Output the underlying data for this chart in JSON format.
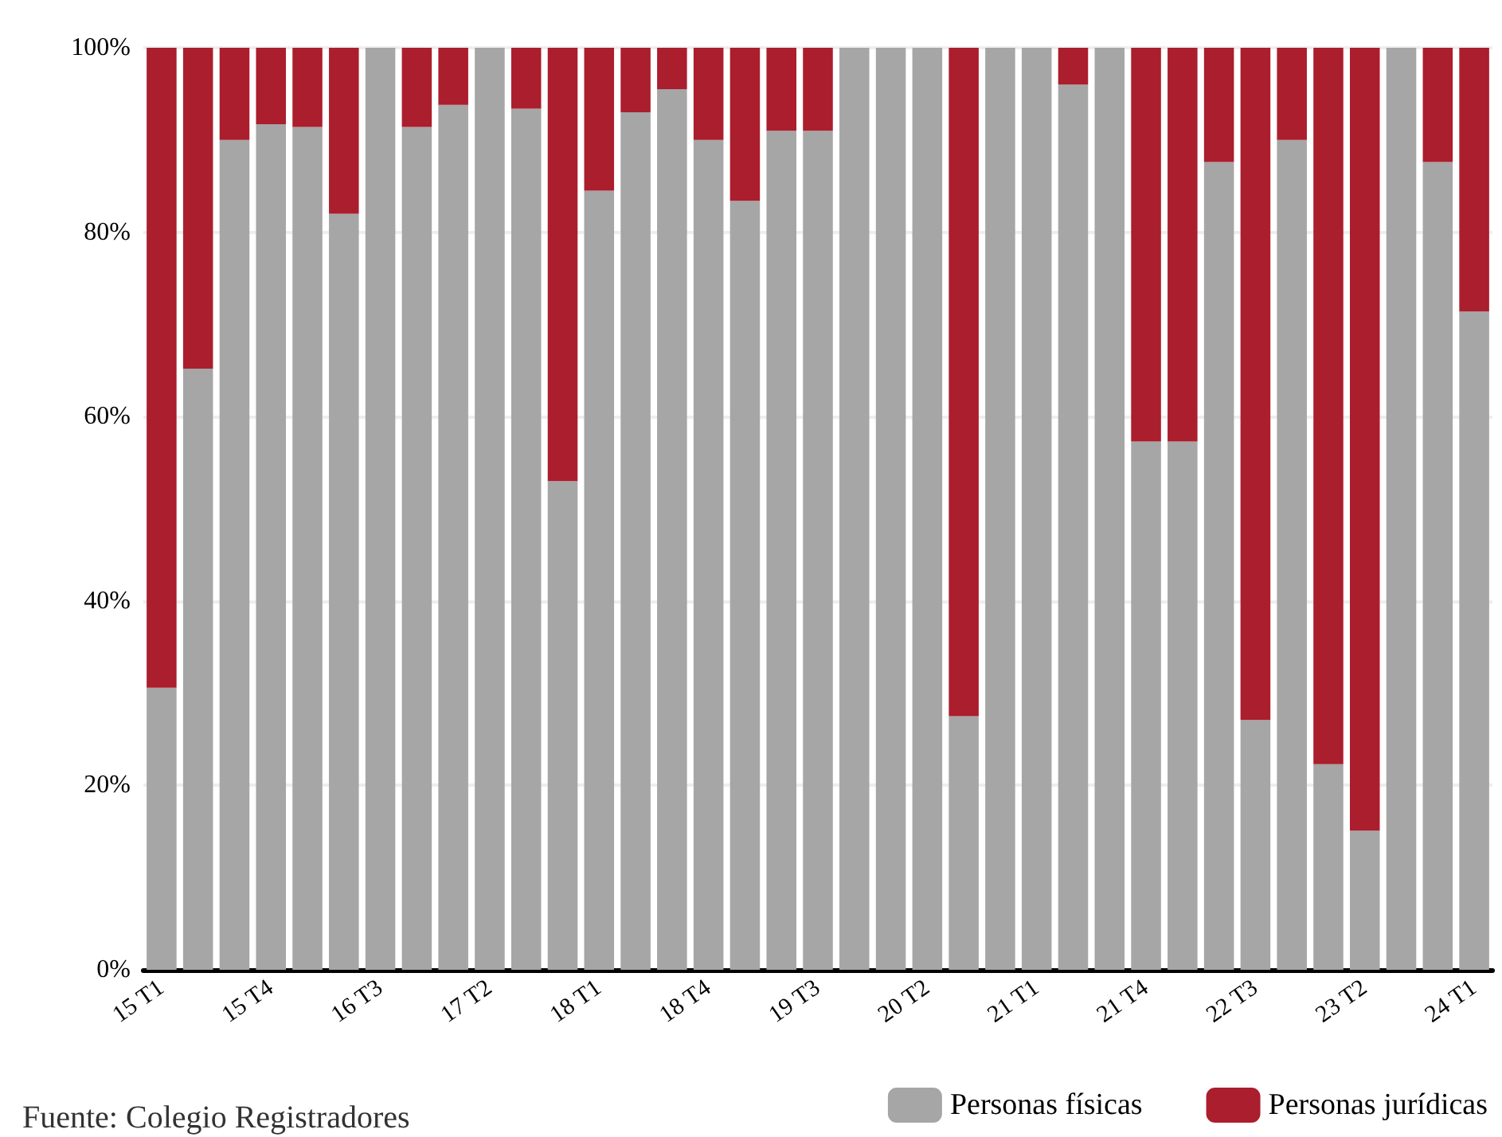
{
  "chart_data": {
    "type": "bar",
    "stacked": true,
    "categories": [
      "15 T1",
      null,
      null,
      "15 T4",
      null,
      null,
      "16 T3",
      null,
      null,
      "17 T2",
      null,
      null,
      "18 T1",
      null,
      null,
      "18 T4",
      null,
      null,
      "19 T3",
      null,
      null,
      "20 T2",
      null,
      null,
      "21 T1",
      null,
      null,
      "21 T4",
      null,
      null,
      "22 T3",
      null,
      null,
      "23 T2",
      null,
      null,
      "24 T1"
    ],
    "series": [
      {
        "name": "Personas físicas",
        "color": "#a6a6a6",
        "values": [
          30.6,
          65.2,
          90,
          91.7,
          91.4,
          82,
          100,
          91.4,
          93.8,
          100,
          93.4,
          53,
          84.5,
          93,
          95.5,
          90,
          83.4,
          91,
          91,
          100,
          100,
          100,
          27.5,
          100,
          100,
          96,
          100,
          57.3,
          57.3,
          87.6,
          27.1,
          90,
          22.3,
          15.1,
          100,
          87.6,
          71.4
        ]
      },
      {
        "name": "Personas jurídicas",
        "color": "#ab1e2d",
        "values": [
          69.4,
          34.8,
          10,
          8.3,
          8.6,
          18,
          0,
          8.6,
          6.2,
          0,
          6.6,
          47,
          15.5,
          7,
          4.5,
          10,
          16.6,
          9,
          9,
          0,
          0,
          0,
          72.5,
          0,
          0,
          4,
          0,
          42.7,
          42.7,
          12.4,
          72.9,
          10,
          77.7,
          84.9,
          0,
          12.4,
          28.6
        ]
      }
    ],
    "ylim": [
      0,
      100
    ],
    "yticks": [
      {
        "value": 0,
        "label": "0%"
      },
      {
        "value": 20,
        "label": "20%"
      },
      {
        "value": 40,
        "label": "40%"
      },
      {
        "value": 60,
        "label": "60%"
      },
      {
        "value": 80,
        "label": "80%"
      },
      {
        "value": 100,
        "label": "100%"
      }
    ],
    "grid": "y",
    "legend": "bottom right",
    "annotations": [
      "Fuente: Colegio Registradores"
    ]
  }
}
